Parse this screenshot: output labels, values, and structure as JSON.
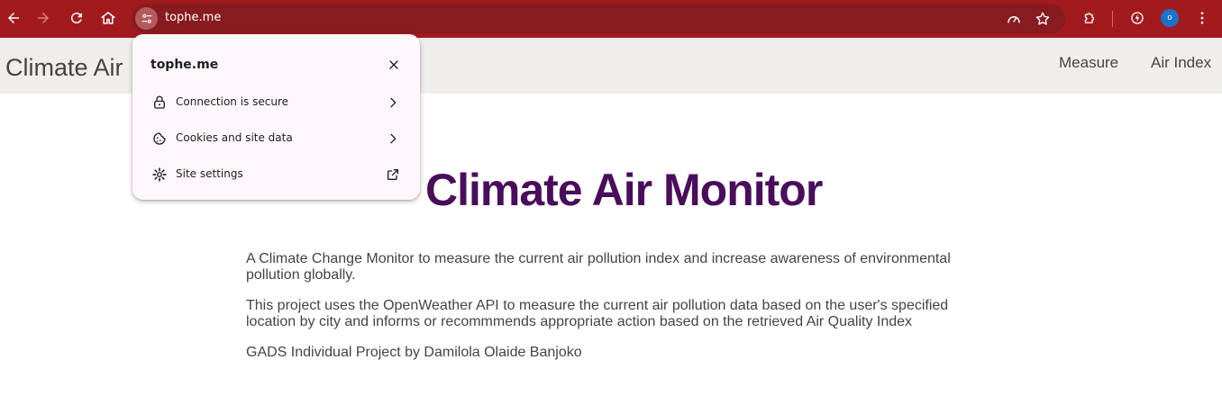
{
  "browser": {
    "url": "tophe.me",
    "profile_initial": "o",
    "icons": {
      "back": "back-arrow-icon",
      "forward": "forward-arrow-icon",
      "reload": "reload-icon",
      "home": "home-icon",
      "site_info": "site-info-tune-icon",
      "performance": "performance-gauge-icon",
      "bookmark": "star-icon",
      "extensions": "puzzle-icon",
      "lightning": "lightning-icon",
      "menu": "kebab-menu-icon"
    },
    "colors": {
      "toolbar": "#a31a1e",
      "omnibox": "#871b1f"
    }
  },
  "site_nav": {
    "brand": "Climate Air",
    "links": [
      "Measure",
      "Air Index"
    ]
  },
  "main": {
    "title": "Climate Air Monitor",
    "paragraphs": [
      "A Climate Change Monitor to measure the current air pollution index and increase awareness of environmental pollution globally.",
      "This project uses the OpenWeather API to measure the current air pollution data based on the user's specified location by city and informs or recommmends appropriate action based on the retrieved Air Quality Index",
      "GADS Individual Project by Damilola Olaide Banjoko"
    ],
    "title_color": "#4a0d5c"
  },
  "popup": {
    "title": "tophe.me",
    "items": [
      {
        "label": "Connection is secure",
        "icon": "lock-icon",
        "end": "chevron-right-icon"
      },
      {
        "label": "Cookies and site data",
        "icon": "cookie-icon",
        "end": "chevron-right-icon"
      },
      {
        "label": "Site settings",
        "icon": "gear-icon",
        "end": "open-external-icon"
      }
    ]
  }
}
